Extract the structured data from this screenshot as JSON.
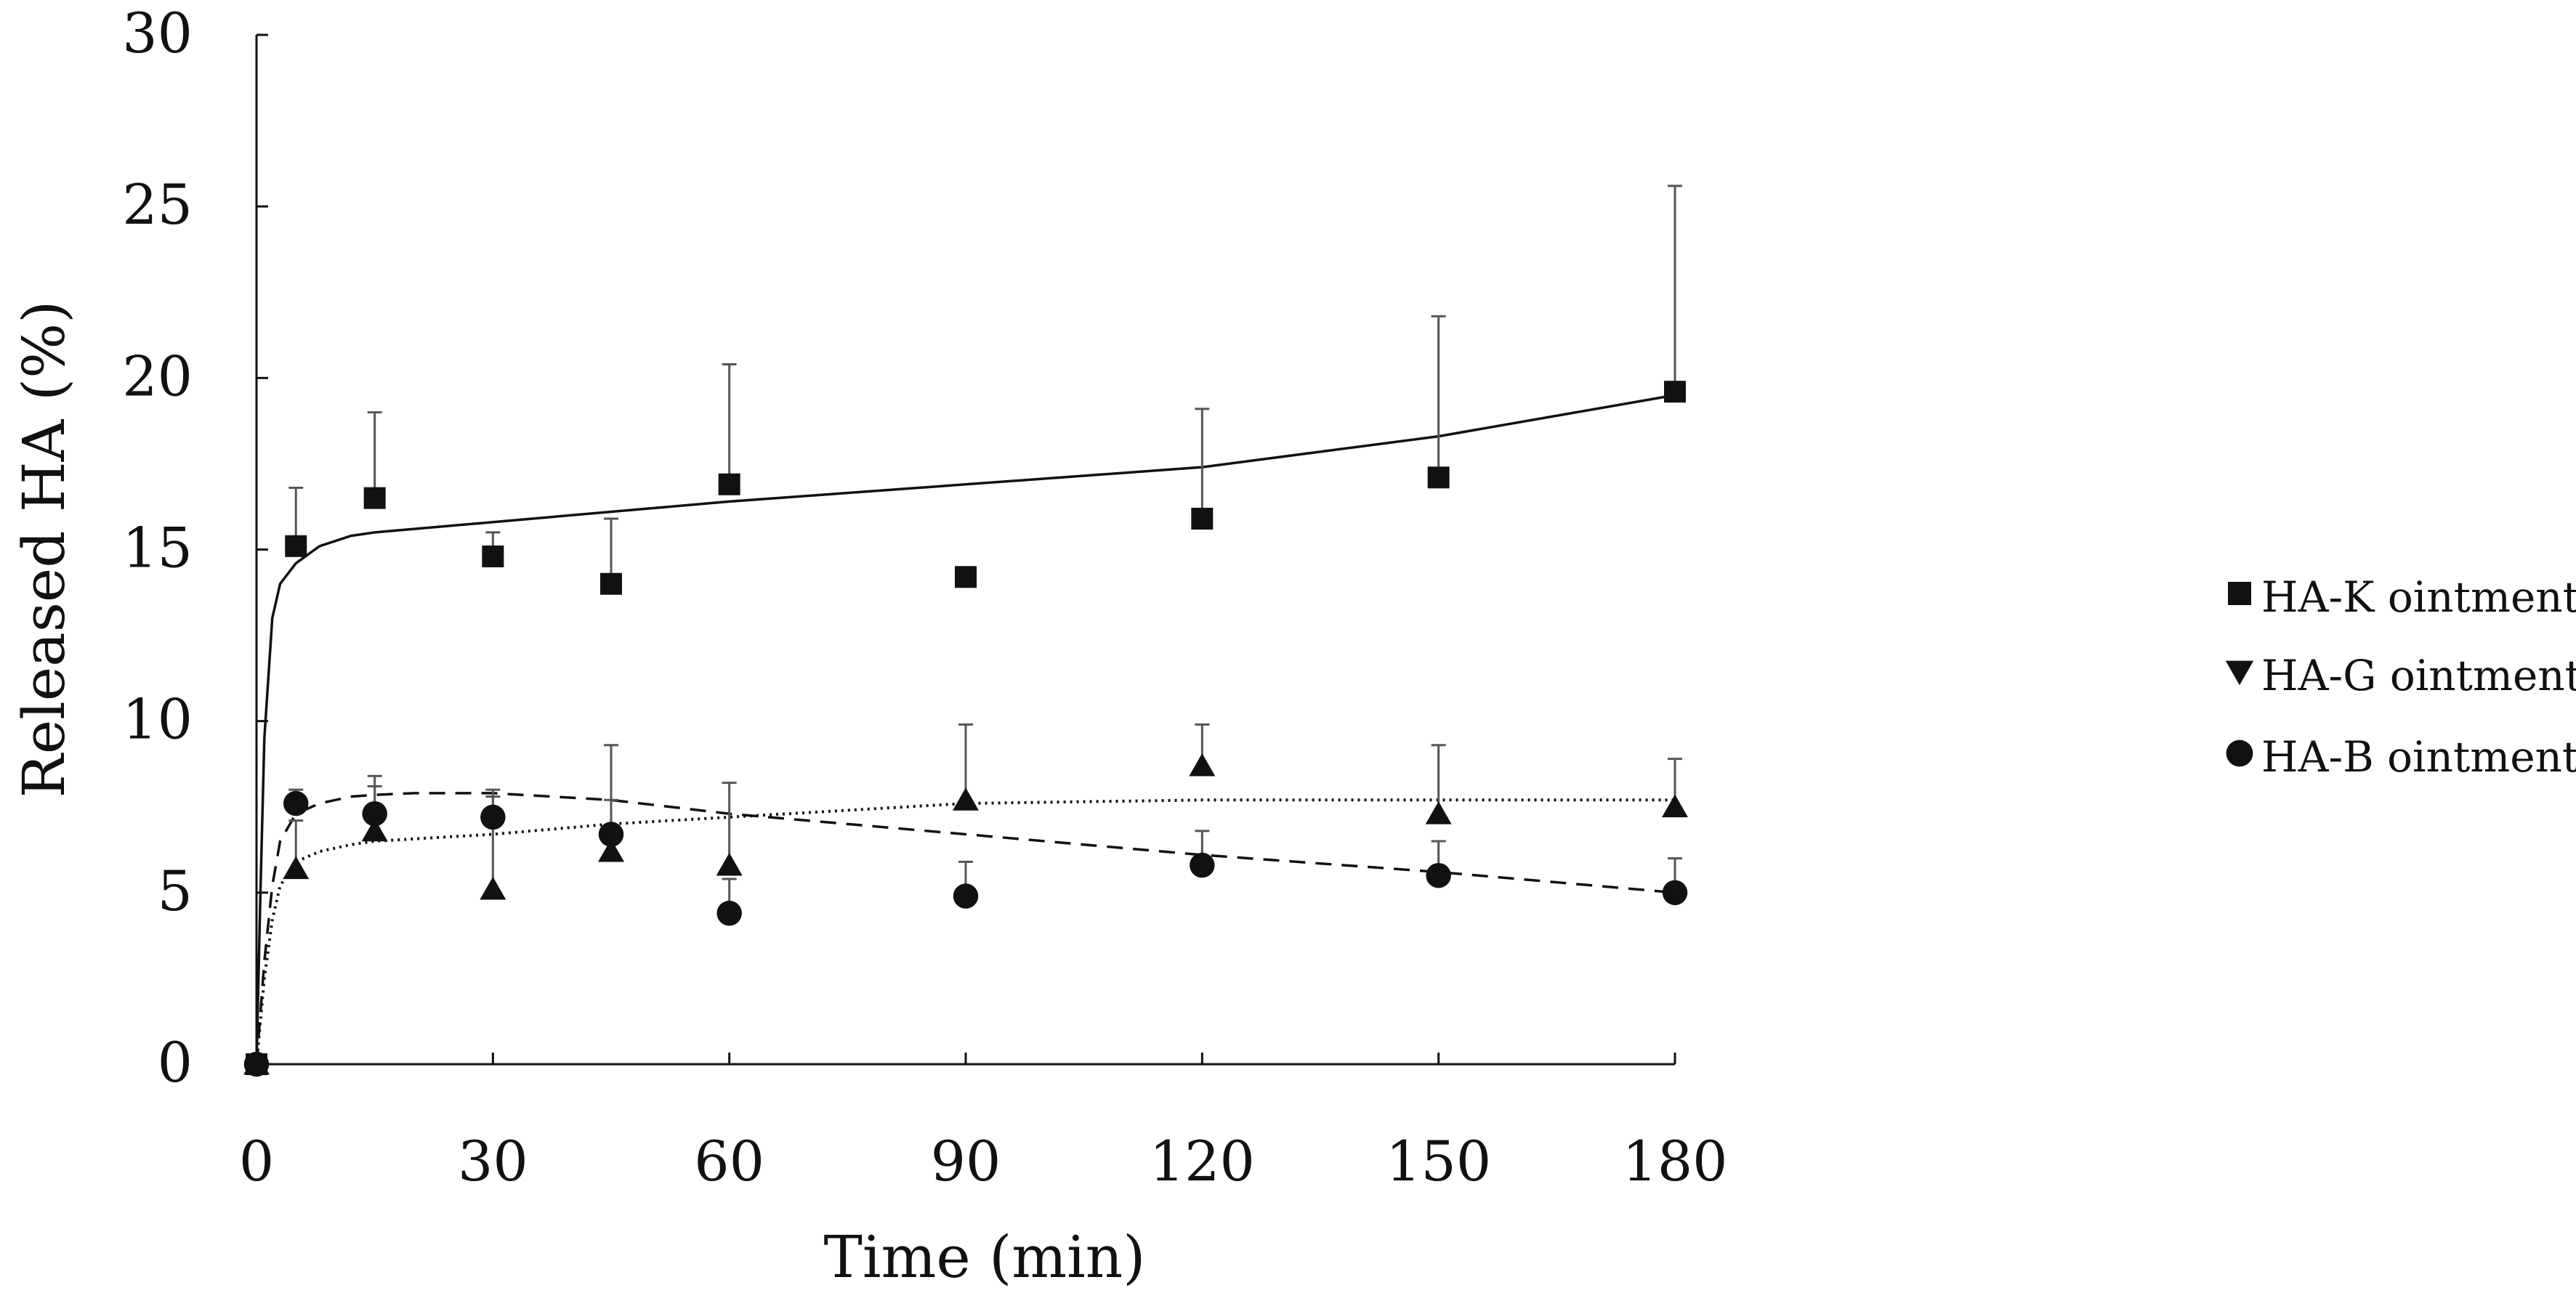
{
  "chart_data": {
    "type": "scatter",
    "title": "",
    "xlabel": "Time (min)",
    "ylabel": "Released HA (%)",
    "xlim": [
      0,
      180
    ],
    "ylim": [
      0,
      30
    ],
    "xticks": [
      0,
      30,
      60,
      90,
      120,
      150,
      180
    ],
    "yticks": [
      0,
      5,
      10,
      15,
      20,
      25,
      30
    ],
    "grid": false,
    "legend_position": "right",
    "series": [
      {
        "name": "HA-K ointment",
        "marker": "square",
        "fit_line": "solid",
        "points": [
          {
            "x": 0,
            "y": 0
          },
          {
            "x": 5,
            "y": 15.1,
            "err": 1.7
          },
          {
            "x": 15,
            "y": 16.5,
            "err": 2.5
          },
          {
            "x": 30,
            "y": 14.8,
            "err": 0.7
          },
          {
            "x": 45,
            "y": 14.0,
            "err": 1.9
          },
          {
            "x": 60,
            "y": 16.9,
            "err": 3.5
          },
          {
            "x": 90,
            "y": 14.2,
            "err": 0
          },
          {
            "x": 120,
            "y": 15.9,
            "err": 3.2
          },
          {
            "x": 150,
            "y": 17.1,
            "err": 4.7
          },
          {
            "x": 180,
            "y": 19.6,
            "err": 6.0
          }
        ],
        "fit": [
          [
            0,
            0
          ],
          [
            0.5,
            5
          ],
          [
            1,
            9.5
          ],
          [
            2,
            13
          ],
          [
            3,
            14
          ],
          [
            5,
            14.6
          ],
          [
            8,
            15.1
          ],
          [
            12,
            15.4
          ],
          [
            15,
            15.5
          ],
          [
            30,
            15.8
          ],
          [
            60,
            16.4
          ],
          [
            90,
            16.9
          ],
          [
            120,
            17.4
          ],
          [
            150,
            18.3
          ],
          [
            180,
            19.5
          ]
        ]
      },
      {
        "name": "HA-G ointment",
        "marker": "triangle",
        "fit_line": "dotted",
        "points": [
          {
            "x": 0,
            "y": 0
          },
          {
            "x": 5,
            "y": 5.7,
            "err": 1.4
          },
          {
            "x": 15,
            "y": 6.8,
            "err": 1.6
          },
          {
            "x": 30,
            "y": 5.1,
            "err": 2.9
          },
          {
            "x": 45,
            "y": 6.2,
            "err": 3.1
          },
          {
            "x": 60,
            "y": 5.8,
            "err": 2.4
          },
          {
            "x": 90,
            "y": 7.7,
            "err": 2.2
          },
          {
            "x": 120,
            "y": 8.7,
            "err": 1.2
          },
          {
            "x": 150,
            "y": 7.3,
            "err": 2.0
          },
          {
            "x": 180,
            "y": 7.5,
            "err": 1.4
          }
        ],
        "fit": [
          [
            0,
            0
          ],
          [
            1,
            2.5
          ],
          [
            2,
            4.2
          ],
          [
            3,
            5.2
          ],
          [
            5,
            5.9
          ],
          [
            8,
            6.2
          ],
          [
            12,
            6.4
          ],
          [
            15,
            6.5
          ],
          [
            30,
            6.7
          ],
          [
            45,
            7.0
          ],
          [
            60,
            7.2
          ],
          [
            90,
            7.6
          ],
          [
            120,
            7.7
          ],
          [
            150,
            7.7
          ],
          [
            180,
            7.7
          ]
        ]
      },
      {
        "name": "HA-B ointment",
        "marker": "circle",
        "fit_line": "dashed",
        "points": [
          {
            "x": 0,
            "y": 0
          },
          {
            "x": 5,
            "y": 7.6,
            "err": 0.4
          },
          {
            "x": 15,
            "y": 7.3,
            "err": 0.8
          },
          {
            "x": 30,
            "y": 7.2,
            "err": 0.6
          },
          {
            "x": 45,
            "y": 6.7,
            "err": 1.0
          },
          {
            "x": 60,
            "y": 4.4,
            "err": 1.0
          },
          {
            "x": 90,
            "y": 4.9,
            "err": 1.0
          },
          {
            "x": 120,
            "y": 5.8,
            "err": 1.0
          },
          {
            "x": 150,
            "y": 5.5,
            "err": 1.0
          },
          {
            "x": 180,
            "y": 5.0,
            "err": 1.0
          }
        ],
        "fit": [
          [
            0,
            0
          ],
          [
            1,
            3
          ],
          [
            2,
            5.2
          ],
          [
            3,
            6.5
          ],
          [
            5,
            7.3
          ],
          [
            8,
            7.6
          ],
          [
            12,
            7.8
          ],
          [
            15,
            7.85
          ],
          [
            20,
            7.9
          ],
          [
            30,
            7.9
          ],
          [
            45,
            7.7
          ],
          [
            60,
            7.3
          ],
          [
            90,
            6.7
          ],
          [
            120,
            6.1
          ],
          [
            150,
            5.6
          ],
          [
            180,
            5.0
          ]
        ]
      }
    ]
  }
}
